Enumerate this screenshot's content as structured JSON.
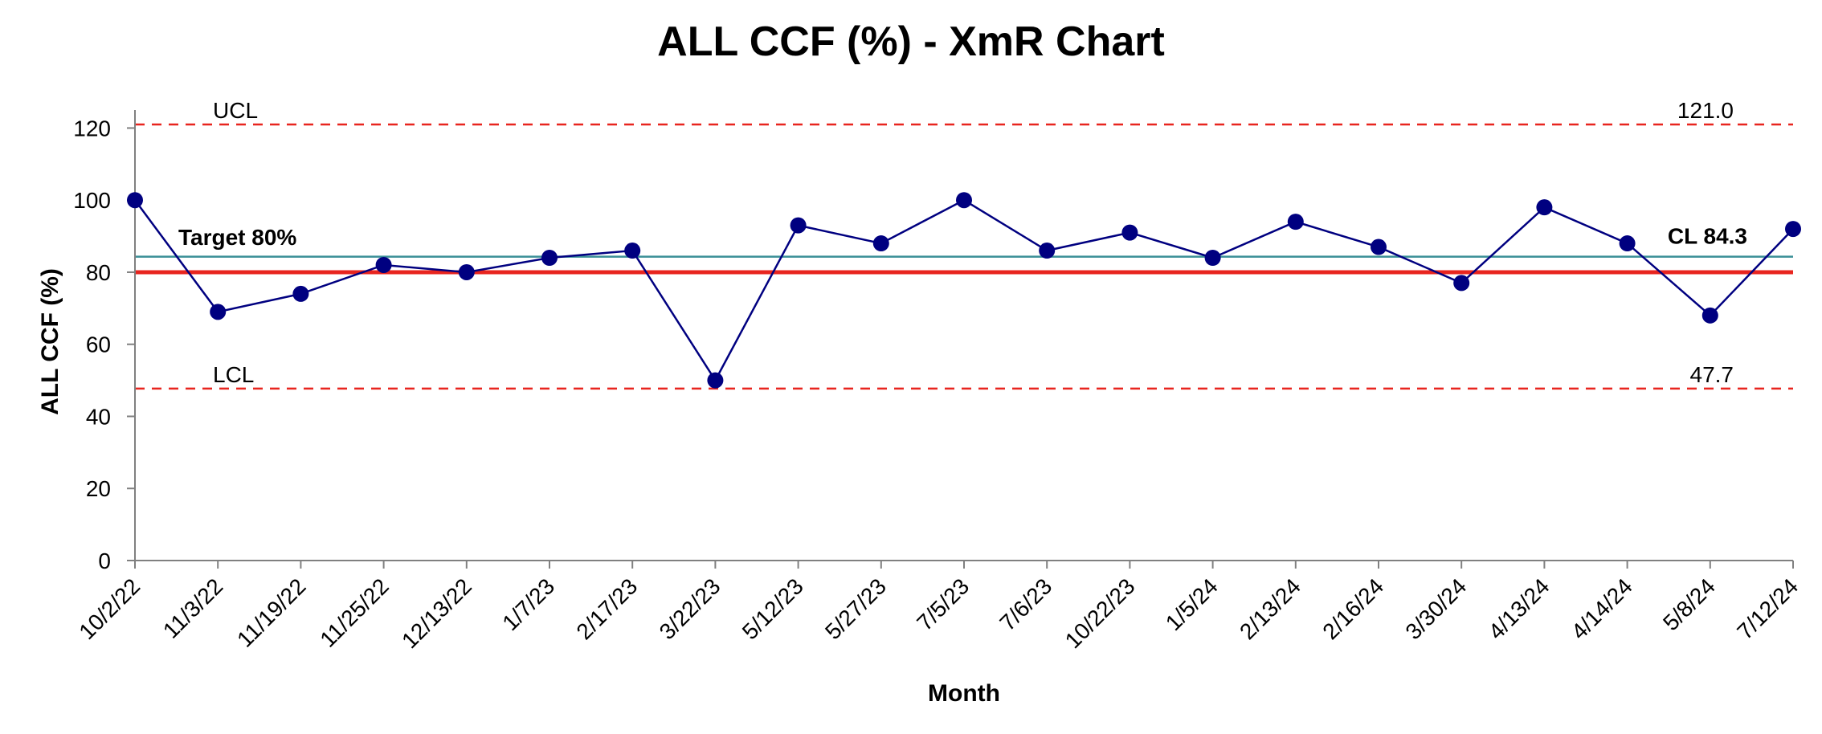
{
  "chart_data": {
    "type": "line",
    "title": "ALL CCF (%) - XmR Chart",
    "xlabel": "Month",
    "ylabel": "ALL CCF (%)",
    "ylim": [
      0,
      125
    ],
    "yticks": [
      0,
      20,
      40,
      60,
      80,
      100,
      120
    ],
    "categories": [
      "10/2/22",
      "11/3/22",
      "11/19/22",
      "11/25/22",
      "12/13/22",
      "1/7/23",
      "2/17/23",
      "3/22/23",
      "5/12/23",
      "5/27/23",
      "7/5/23",
      "7/6/23",
      "10/22/23",
      "1/5/24",
      "2/13/24",
      "2/16/24",
      "3/30/24",
      "4/13/24",
      "4/14/24",
      "5/8/24",
      "7/12/24"
    ],
    "series": [
      {
        "values": [
          100,
          69,
          74,
          82,
          80,
          84,
          86,
          50,
          93,
          88,
          100,
          86,
          91,
          84,
          94,
          87,
          77,
          98,
          88,
          68,
          92
        ]
      }
    ],
    "reference_lines": {
      "ucl": {
        "label": "UCL",
        "value": 121.0,
        "value_label": "121.0"
      },
      "lcl": {
        "label": "LCL",
        "value": 47.7,
        "value_label": "47.7"
      },
      "cl": {
        "value": 84.3,
        "label": "CL 84.3"
      },
      "target": {
        "value": 80,
        "label": "Target 80%"
      }
    },
    "grid": false,
    "legend": "none"
  },
  "colors": {
    "series": "#000080",
    "marker": "#000080",
    "control_limits": "#e8251f",
    "target": "#e8251f",
    "center_line": "#3a8f96",
    "axis": "#808080"
  }
}
